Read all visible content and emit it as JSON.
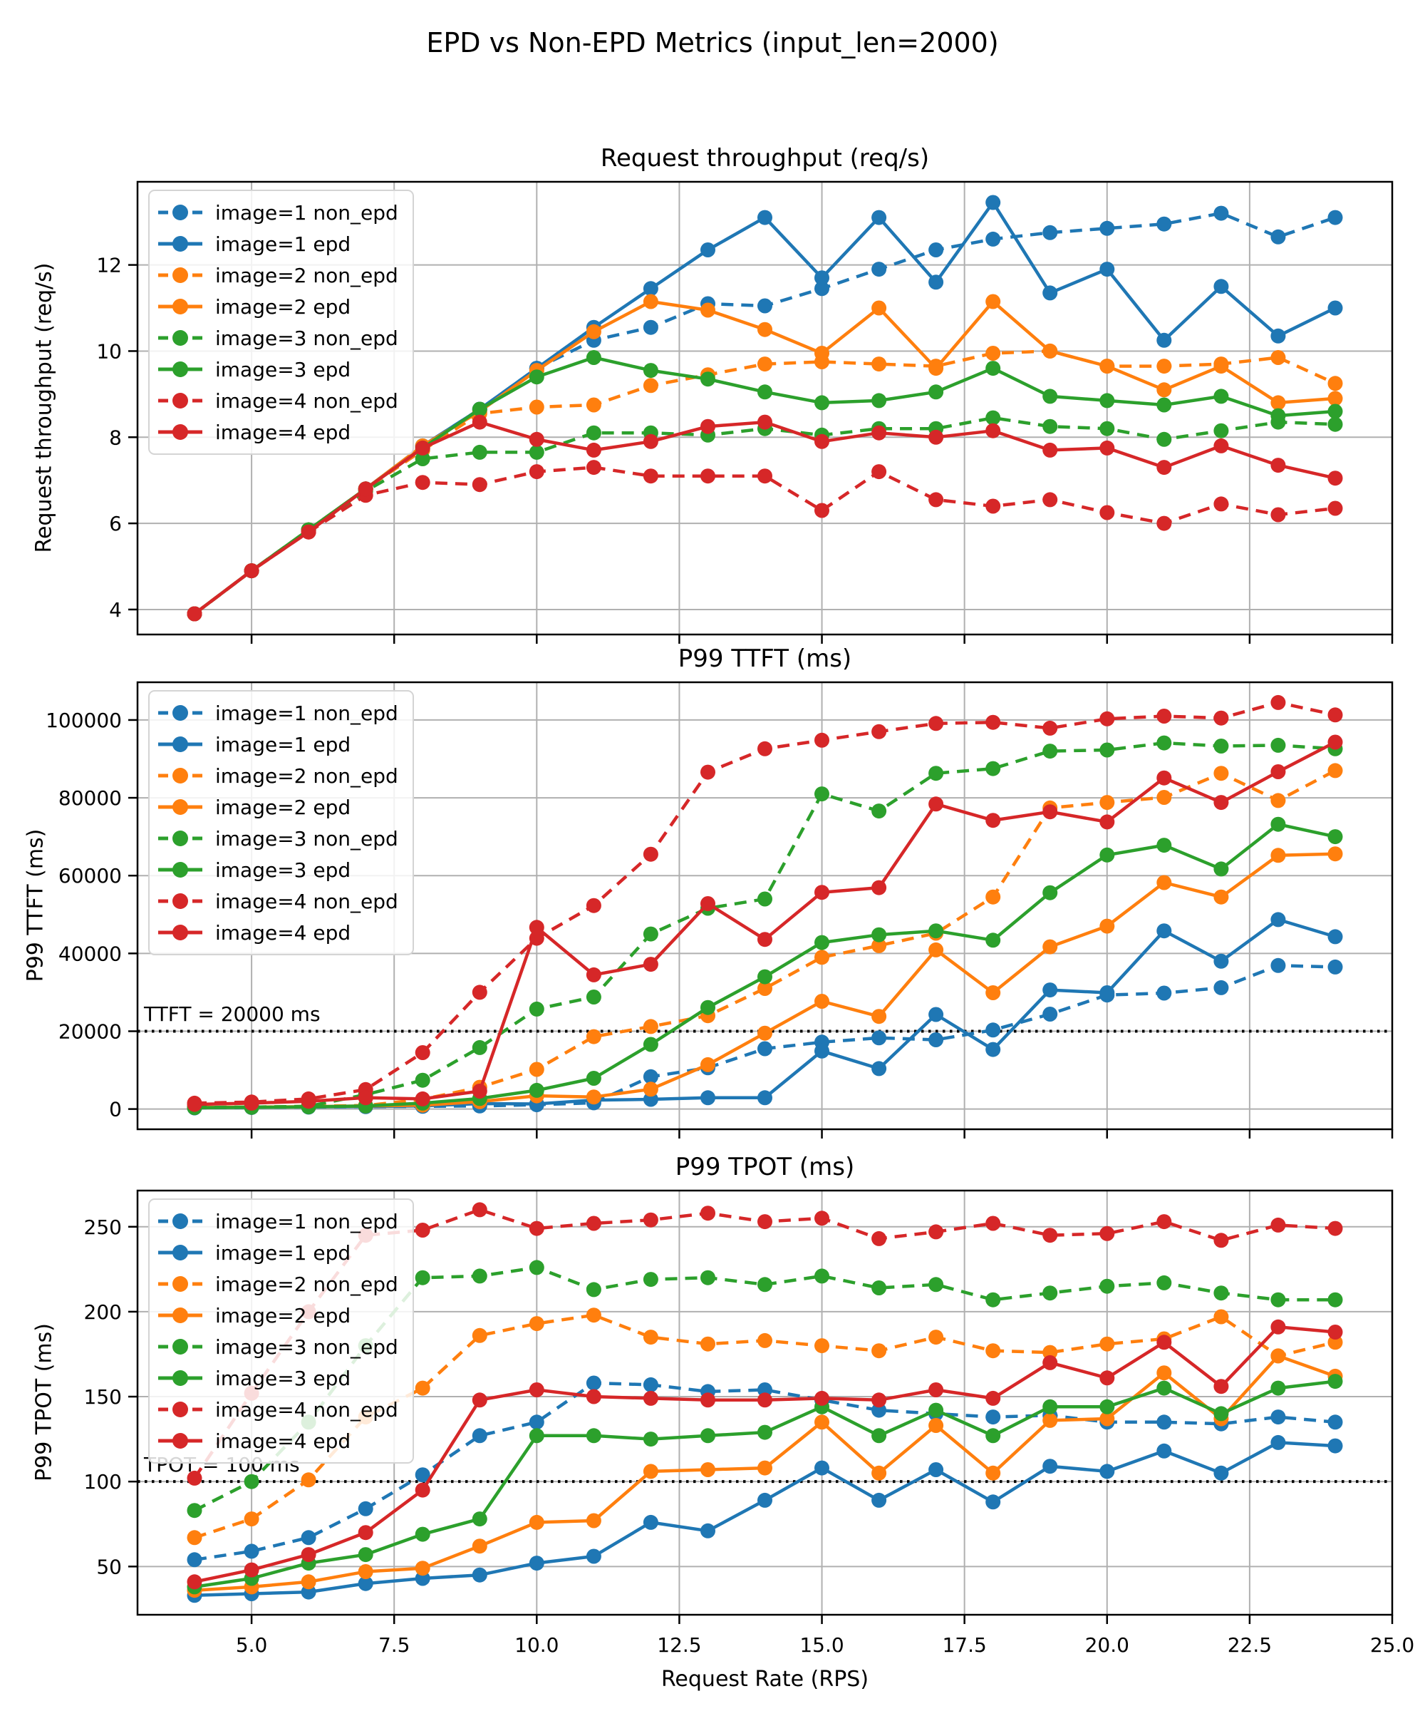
{
  "suptitle": "EPD vs Non-EPD Metrics (input_len=2000)",
  "x": {
    "label": "Request Rate (RPS)",
    "values": [
      4,
      5,
      6,
      7,
      8,
      9,
      10,
      11,
      12,
      13,
      14,
      15,
      16,
      17,
      18,
      19,
      20,
      21,
      22,
      23,
      24
    ],
    "ticks": [
      5,
      7.5,
      10,
      12.5,
      15,
      17.5,
      20,
      22.5,
      25
    ],
    "tick_labels": [
      "5.0",
      "7.5",
      "10.0",
      "12.5",
      "15.0",
      "17.5",
      "20.0",
      "22.5",
      "25.0"
    ],
    "xlim": [
      3,
      25
    ]
  },
  "colors": {
    "blue": "#1f77b4",
    "orange": "#ff7f0e",
    "green": "#2ca02c",
    "red": "#d62728",
    "grid": "#b0b0b0",
    "spine": "#000000",
    "ref_line": "#000000"
  },
  "chart_data": [
    {
      "type": "line",
      "title": "Request throughput (req/s)",
      "ylabel": "Request throughput (req/s)",
      "ylim": [
        3.42,
        13.93
      ],
      "yticks": [
        4,
        6,
        8,
        10,
        12
      ],
      "ytick_labels": [
        "4",
        "6",
        "8",
        "10",
        "12"
      ],
      "ref_line": null,
      "series": [
        {
          "name": "image=1 non_epd",
          "color": "#1f77b4",
          "dashed": true,
          "values": [
            3.9,
            4.9,
            5.85,
            6.8,
            7.8,
            8.65,
            9.6,
            10.25,
            10.55,
            11.1,
            11.05,
            11.45,
            11.9,
            12.35,
            12.6,
            12.75,
            12.85,
            12.95,
            13.2,
            12.65,
            13.1
          ]
        },
        {
          "name": "image=1 epd",
          "color": "#1f77b4",
          "dashed": false,
          "values": [
            3.9,
            4.9,
            5.85,
            6.8,
            7.8,
            8.65,
            9.6,
            10.55,
            11.45,
            12.35,
            13.1,
            11.7,
            13.1,
            11.6,
            13.45,
            11.35,
            11.9,
            10.25,
            11.5,
            10.35,
            11.0
          ]
        },
        {
          "name": "image=2 non_epd",
          "color": "#ff7f0e",
          "dashed": true,
          "values": [
            3.9,
            4.9,
            5.85,
            6.8,
            7.7,
            8.55,
            8.7,
            8.75,
            9.2,
            9.45,
            9.7,
            9.75,
            9.7,
            9.65,
            9.95,
            10.0,
            9.65,
            9.65,
            9.7,
            9.85,
            9.25
          ]
        },
        {
          "name": "image=2 epd",
          "color": "#ff7f0e",
          "dashed": false,
          "values": [
            3.9,
            4.9,
            5.85,
            6.8,
            7.8,
            8.6,
            9.55,
            10.45,
            11.15,
            10.95,
            10.5,
            9.95,
            11.0,
            9.6,
            11.15,
            10.0,
            9.65,
            9.1,
            9.65,
            8.8,
            8.9
          ]
        },
        {
          "name": "image=3 non_epd",
          "color": "#2ca02c",
          "dashed": true,
          "values": [
            3.9,
            4.9,
            5.85,
            6.75,
            7.5,
            7.65,
            7.65,
            8.1,
            8.1,
            8.05,
            8.2,
            8.05,
            8.2,
            8.2,
            8.45,
            8.25,
            8.2,
            7.95,
            8.15,
            8.35,
            8.3
          ]
        },
        {
          "name": "image=3 epd",
          "color": "#2ca02c",
          "dashed": false,
          "values": [
            3.9,
            4.9,
            5.85,
            6.8,
            7.75,
            8.65,
            9.4,
            9.85,
            9.55,
            9.35,
            9.05,
            8.8,
            8.85,
            9.05,
            9.6,
            8.95,
            8.85,
            8.75,
            8.95,
            8.5,
            8.6
          ]
        },
        {
          "name": "image=4 non_epd",
          "color": "#d62728",
          "dashed": true,
          "values": [
            3.9,
            4.9,
            5.8,
            6.65,
            6.95,
            6.9,
            7.2,
            7.3,
            7.1,
            7.1,
            7.1,
            6.3,
            7.2,
            6.55,
            6.4,
            6.55,
            6.25,
            6.0,
            6.45,
            6.2,
            6.35
          ]
        },
        {
          "name": "image=4 epd",
          "color": "#d62728",
          "dashed": false,
          "values": [
            3.9,
            4.9,
            5.8,
            6.8,
            7.75,
            8.35,
            7.95,
            7.7,
            7.9,
            8.25,
            8.35,
            7.9,
            8.1,
            8.0,
            8.15,
            7.7,
            7.75,
            7.3,
            7.8,
            7.35,
            7.05
          ]
        }
      ]
    },
    {
      "type": "line",
      "title": "P99 TTFT (ms)",
      "ylabel": "P99 TTFT (ms)",
      "ylim": [
        -5200,
        109700
      ],
      "yticks": [
        0,
        20000,
        40000,
        60000,
        80000,
        100000
      ],
      "ytick_labels": [
        "0",
        "20000",
        "40000",
        "60000",
        "80000",
        "100000"
      ],
      "ref_line": {
        "value": 20000,
        "label": "TTFT = 20000 ms"
      },
      "series": [
        {
          "name": "image=1 non_epd",
          "color": "#1f77b4",
          "dashed": true,
          "values": [
            300,
            400,
            500,
            600,
            700,
            800,
            1100,
            1600,
            8300,
            10600,
            15500,
            17200,
            18300,
            17800,
            20300,
            24400,
            29300,
            29800,
            31200,
            36900,
            36500
          ]
        },
        {
          "name": "image=1 epd",
          "color": "#1f77b4",
          "dashed": false,
          "values": [
            350,
            450,
            550,
            650,
            800,
            1400,
            1300,
            2300,
            2500,
            2900,
            2900,
            14900,
            10400,
            24300,
            15300,
            30600,
            29900,
            45800,
            38000,
            48700,
            44300
          ]
        },
        {
          "name": "image=2 non_epd",
          "color": "#ff7f0e",
          "dashed": true,
          "values": [
            400,
            500,
            700,
            900,
            2500,
            5600,
            10200,
            18600,
            21200,
            24000,
            31000,
            39000,
            42000,
            45200,
            54500,
            77400,
            78800,
            80100,
            86300,
            79300,
            87000
          ]
        },
        {
          "name": "image=2 epd",
          "color": "#ff7f0e",
          "dashed": false,
          "values": [
            400,
            500,
            600,
            800,
            1000,
            1900,
            3400,
            3100,
            5100,
            11400,
            19500,
            27700,
            23800,
            40900,
            29900,
            41700,
            47000,
            58200,
            54500,
            65200,
            65600
          ]
        },
        {
          "name": "image=3 non_epd",
          "color": "#2ca02c",
          "dashed": true,
          "values": [
            400,
            500,
            700,
            3700,
            7400,
            15800,
            25700,
            28800,
            45000,
            51600,
            54000,
            81000,
            76600,
            86300,
            87500,
            92000,
            92300,
            94100,
            93300,
            93500,
            92600
          ]
        },
        {
          "name": "image=3 epd",
          "color": "#2ca02c",
          "dashed": false,
          "values": [
            350,
            450,
            550,
            800,
            1500,
            2700,
            4800,
            7900,
            16600,
            26100,
            34000,
            42800,
            44800,
            45800,
            43400,
            55600,
            65300,
            67800,
            61700,
            73200,
            70000
          ]
        },
        {
          "name": "image=4 non_epd",
          "color": "#d62728",
          "dashed": true,
          "values": [
            1500,
            1800,
            2600,
            5000,
            14500,
            30000,
            43900,
            52300,
            65500,
            86600,
            92600,
            94800,
            97000,
            99100,
            99400,
            97900,
            100300,
            101000,
            100500,
            104500,
            101300
          ]
        },
        {
          "name": "image=4 epd",
          "color": "#d62728",
          "dashed": false,
          "values": [
            1200,
            1500,
            2000,
            2900,
            2600,
            4600,
            46700,
            34500,
            37200,
            52800,
            43600,
            55700,
            56900,
            78400,
            74200,
            76400,
            73800,
            85100,
            78800,
            86700,
            94300
          ]
        }
      ]
    },
    {
      "type": "line",
      "title": "P99 TPOT (ms)",
      "ylabel": "P99 TPOT (ms)",
      "ylim": [
        21.6,
        271.3
      ],
      "yticks": [
        50,
        100,
        150,
        200,
        250
      ],
      "ytick_labels": [
        "50",
        "100",
        "150",
        "200",
        "250"
      ],
      "ref_line": {
        "value": 100,
        "label": "TPOT = 100 ms"
      },
      "series": [
        {
          "name": "image=1 non_epd",
          "color": "#1f77b4",
          "dashed": true,
          "values": [
            54,
            59,
            67,
            84,
            104,
            127,
            135,
            158,
            157,
            153,
            154,
            148,
            142,
            140,
            138,
            139,
            135,
            135,
            134,
            138,
            135
          ]
        },
        {
          "name": "image=1 epd",
          "color": "#1f77b4",
          "dashed": false,
          "values": [
            33,
            34,
            35,
            40,
            43,
            45,
            52,
            56,
            76,
            71,
            89,
            108,
            89,
            107,
            88,
            109,
            106,
            118,
            105,
            123,
            121
          ]
        },
        {
          "name": "image=2 non_epd",
          "color": "#ff7f0e",
          "dashed": true,
          "values": [
            67,
            78,
            101,
            138,
            155,
            186,
            193,
            198,
            185,
            181,
            183,
            180,
            177,
            185,
            177,
            176,
            181,
            184,
            197,
            174,
            182
          ]
        },
        {
          "name": "image=2 epd",
          "color": "#ff7f0e",
          "dashed": false,
          "values": [
            36,
            38,
            41,
            47,
            49,
            62,
            76,
            77,
            106,
            107,
            108,
            135,
            105,
            133,
            105,
            136,
            137,
            164,
            137,
            174,
            162
          ]
        },
        {
          "name": "image=3 non_epd",
          "color": "#2ca02c",
          "dashed": true,
          "values": [
            83,
            100,
            135,
            180,
            220,
            221,
            226,
            213,
            219,
            220,
            216,
            221,
            214,
            216,
            207,
            211,
            215,
            217,
            211,
            207,
            207
          ]
        },
        {
          "name": "image=3 epd",
          "color": "#2ca02c",
          "dashed": false,
          "values": [
            38,
            43,
            52,
            57,
            69,
            78,
            127,
            127,
            125,
            127,
            129,
            144,
            127,
            142,
            127,
            144,
            144,
            155,
            140,
            155,
            159
          ]
        },
        {
          "name": "image=4 non_epd",
          "color": "#d62728",
          "dashed": true,
          "values": [
            102,
            152,
            200,
            245,
            248,
            260,
            249,
            252,
            254,
            258,
            253,
            255,
            243,
            247,
            252,
            245,
            246,
            253,
            242,
            251,
            249
          ]
        },
        {
          "name": "image=4 epd",
          "color": "#d62728",
          "dashed": false,
          "values": [
            41,
            48,
            57,
            70,
            95,
            148,
            154,
            150,
            149,
            148,
            148,
            149,
            148,
            154,
            149,
            170,
            161,
            182,
            156,
            191,
            188
          ]
        }
      ]
    }
  ]
}
